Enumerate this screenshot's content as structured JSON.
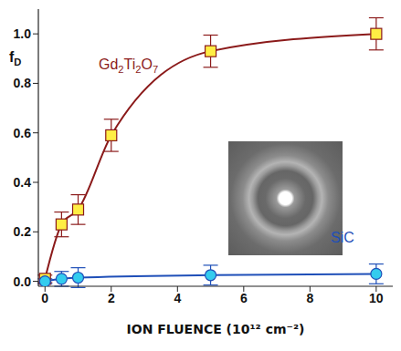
{
  "chart_data": {
    "type": "line",
    "x_label": "ION FLUENCE (10¹² cm⁻²)",
    "y_label": "fD",
    "xlim": [
      -0.2,
      10.5
    ],
    "xticks": [
      0,
      2,
      4,
      6,
      8,
      10
    ],
    "ylim": [
      -0.02,
      1.1
    ],
    "yticks": [
      {
        "value": 0,
        "label": "0.0"
      },
      {
        "value": 0.2,
        "label": "0.2"
      },
      {
        "value": 0.4,
        "label": "0.4"
      },
      {
        "value": 0.6,
        "label": "0.6"
      },
      {
        "value": 0.8,
        "label": "0.8"
      },
      {
        "value": 1.0,
        "label": "1.0"
      }
    ],
    "grid": false,
    "series": [
      {
        "name": "Gd2Ti2O7",
        "color": "#8b1a1a",
        "marker": "square",
        "x": [
          0,
          0.5,
          1,
          2,
          5,
          10
        ],
        "values": [
          0.01,
          0.23,
          0.29,
          0.59,
          0.93,
          1.0
        ],
        "errors": [
          0.015,
          0.05,
          0.06,
          0.065,
          0.065,
          0.065
        ]
      },
      {
        "name": "SiC",
        "color": "#1f4fb8",
        "marker": "circle",
        "x": [
          0,
          0.5,
          1,
          5,
          10
        ],
        "values": [
          0.0,
          0.01,
          0.015,
          0.025,
          0.03
        ],
        "errors": [
          0.01,
          0.03,
          0.04,
          0.04,
          0.04
        ]
      }
    ]
  }
}
